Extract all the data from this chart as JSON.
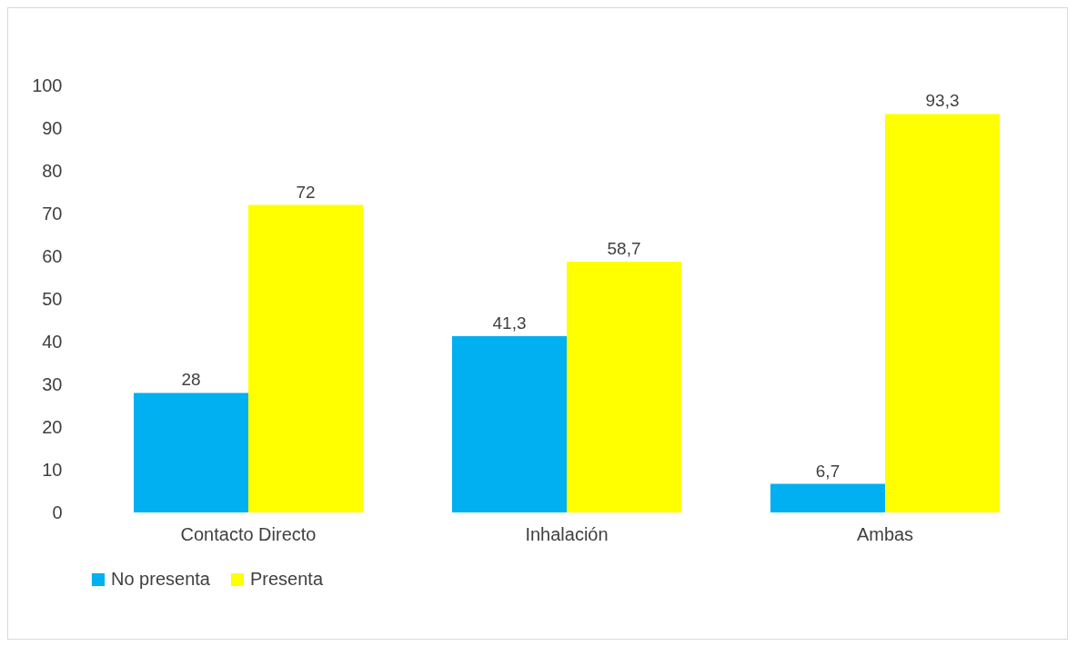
{
  "chart_data": {
    "type": "bar",
    "categories": [
      "Contacto Directo",
      "Inhalación",
      "Ambas"
    ],
    "series": [
      {
        "name": "No presenta",
        "color": "#00b0f0",
        "values": [
          28,
          41.3,
          6.7
        ],
        "value_labels": [
          "28",
          "41,3",
          "6,7"
        ]
      },
      {
        "name": "Presenta",
        "color": "#ffff00",
        "values": [
          72,
          58.7,
          93.3
        ],
        "value_labels": [
          "72",
          "58,7",
          "93,3"
        ]
      }
    ],
    "ylim": [
      0,
      100
    ],
    "yticks": [
      0,
      10,
      20,
      30,
      40,
      50,
      60,
      70,
      80,
      90,
      100
    ],
    "grid": false,
    "legend": "bottom"
  }
}
